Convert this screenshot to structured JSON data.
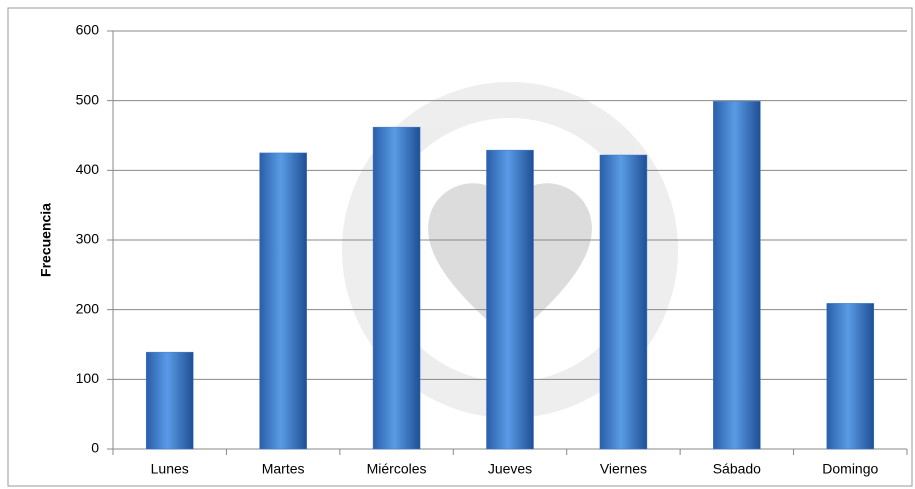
{
  "chart_data": {
    "type": "bar",
    "y_label": "Frecuencia",
    "categories": [
      "Lunes",
      "Martes",
      "Miércoles",
      "Jueves",
      "Viernes",
      "Sábado",
      "Domingo"
    ],
    "values": [
      139,
      425,
      462,
      429,
      422,
      499,
      209
    ],
    "color": "#3a78c9",
    "ylim": [
      0,
      600
    ],
    "yticks": [
      0,
      100,
      200,
      300,
      400,
      500,
      600
    ],
    "grid": true
  }
}
